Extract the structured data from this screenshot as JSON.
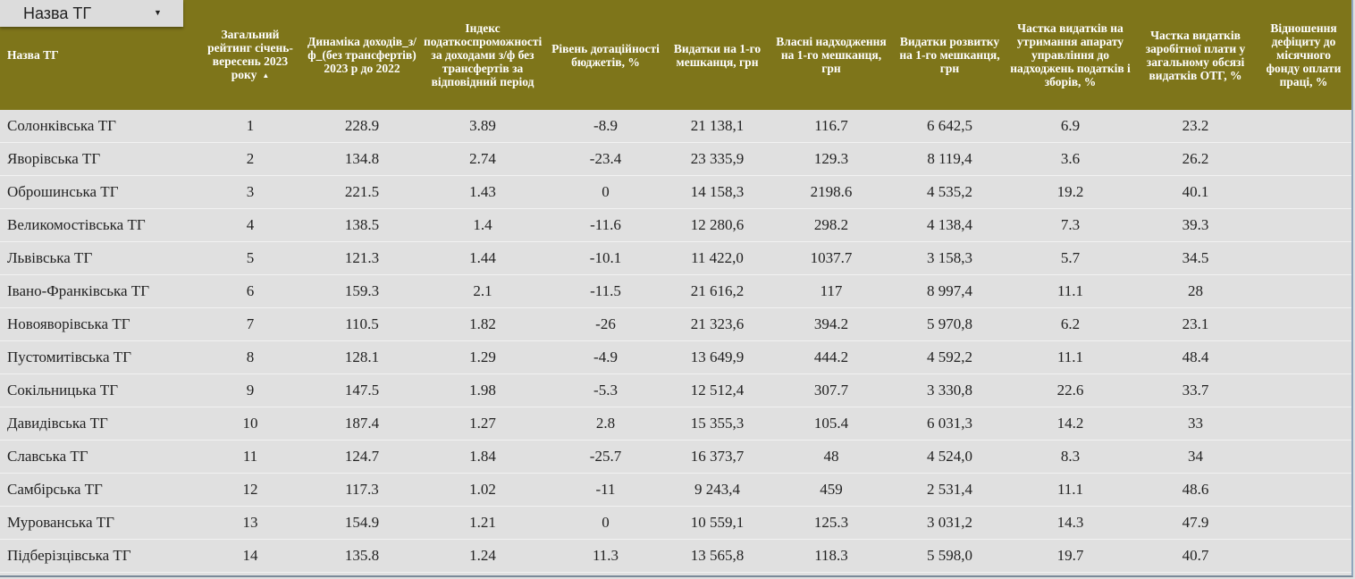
{
  "filter": {
    "label": "Назва ТГ"
  },
  "columns": [
    "Назва ТГ",
    "Загальний рейтинг січень-вересень 2023 року",
    "Динаміка доходів_з/ф_(без трансфертів) 2023 р до 2022",
    "Індекс податкоспроможності за доходами з/ф без трансфертів за відповідний період",
    "Рівень дотаційності бюджетів, %",
    "Видатки на 1-го мешканця, грн",
    "Власні надходження на 1-го мешканця, грн",
    "Видатки розвитку на 1-го мешканця, грн",
    "Частка видатків на утримання апарату управління до надходжень податків і зборів, %",
    "Частка видатків заробітної плати у загальному обсязі видатків ОТГ, %",
    "Відношення дефіциту до місячного фонду оплати праці, %"
  ],
  "sort_indicator": "▲",
  "rows": [
    [
      "Солонківська ТГ",
      "1",
      "228.9",
      "3.89",
      "-8.9",
      "21 138,1",
      "116.7",
      "6 642,5",
      "6.9",
      "23.2",
      ""
    ],
    [
      "Яворівська ТГ",
      "2",
      "134.8",
      "2.74",
      "-23.4",
      "23 335,9",
      "129.3",
      "8 119,4",
      "3.6",
      "26.2",
      ""
    ],
    [
      "Оброшинська ТГ",
      "3",
      "221.5",
      "1.43",
      "0",
      "14 158,3",
      "2198.6",
      "4 535,2",
      "19.2",
      "40.1",
      ""
    ],
    [
      "Великомостівська ТГ",
      "4",
      "138.5",
      "1.4",
      "-11.6",
      "12 280,6",
      "298.2",
      "4 138,4",
      "7.3",
      "39.3",
      ""
    ],
    [
      "Львівська ТГ",
      "5",
      "121.3",
      "1.44",
      "-10.1",
      "11 422,0",
      "1037.7",
      "3 158,3",
      "5.7",
      "34.5",
      ""
    ],
    [
      "Івано-Франківська ТГ",
      "6",
      "159.3",
      "2.1",
      "-11.5",
      "21 616,2",
      "117",
      "8 997,4",
      "11.1",
      "28",
      ""
    ],
    [
      "Новояворівська ТГ",
      "7",
      "110.5",
      "1.82",
      "-26",
      "21 323,6",
      "394.2",
      "5 970,8",
      "6.2",
      "23.1",
      ""
    ],
    [
      "Пустомитівська ТГ",
      "8",
      "128.1",
      "1.29",
      "-4.9",
      "13 649,9",
      "444.2",
      "4 592,2",
      "11.1",
      "48.4",
      ""
    ],
    [
      "Сокільницька ТГ",
      "9",
      "147.5",
      "1.98",
      "-5.3",
      "12 512,4",
      "307.7",
      "3 330,8",
      "22.6",
      "33.7",
      ""
    ],
    [
      "Давидівська ТГ",
      "10",
      "187.4",
      "1.27",
      "2.8",
      "15 355,3",
      "105.4",
      "6 031,3",
      "14.2",
      "33",
      ""
    ],
    [
      "Славська ТГ",
      "11",
      "124.7",
      "1.84",
      "-25.7",
      "16 373,7",
      "48",
      "4 524,0",
      "8.3",
      "34",
      ""
    ],
    [
      "Самбірська ТГ",
      "12",
      "117.3",
      "1.02",
      "-11",
      "9 243,4",
      "459",
      "2 531,4",
      "11.1",
      "48.6",
      ""
    ],
    [
      "Мурованська ТГ",
      "13",
      "154.9",
      "1.21",
      "0",
      "10 559,1",
      "125.3",
      "3 031,2",
      "14.3",
      "47.9",
      ""
    ],
    [
      "Підберізцівська ТГ",
      "14",
      "135.8",
      "1.24",
      "11.3",
      "13 565,8",
      "118.3",
      "5 598,0",
      "19.7",
      "40.7",
      ""
    ]
  ]
}
